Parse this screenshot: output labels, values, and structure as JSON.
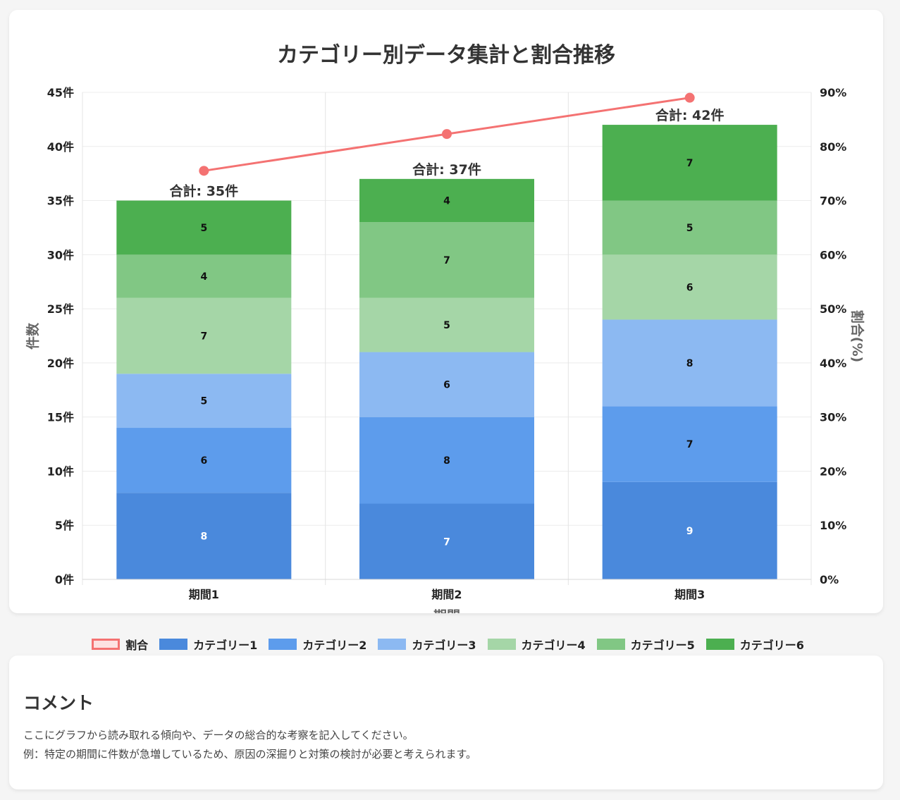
{
  "colors": {
    "ratio_line": "#f47272",
    "ratio_fill": "#fde2e2",
    "categories": [
      "#4a89dc",
      "#5d9cec",
      "#8cb9f2",
      "#a5d6a7",
      "#81c784",
      "#4caf50"
    ],
    "segment_label_colors": [
      "#ffffff",
      "#111111",
      "#111111",
      "#111111",
      "#111111",
      "#111111"
    ]
  },
  "chart_data": {
    "type": "bar",
    "stacked": true,
    "title": "カテゴリー別データ集計と割合推移",
    "xlabel": "期間",
    "ylabel": "件数",
    "y2label": "割合(%)",
    "categories": [
      "期間1",
      "期間2",
      "期間3"
    ],
    "ylim": [
      0,
      45
    ],
    "y2lim": [
      0,
      90
    ],
    "y_ticks": [
      {
        "value": 0,
        "label": "0件"
      },
      {
        "value": 5,
        "label": "5件"
      },
      {
        "value": 10,
        "label": "10件"
      },
      {
        "value": 15,
        "label": "15件"
      },
      {
        "value": 20,
        "label": "20件"
      },
      {
        "value": 25,
        "label": "25件"
      },
      {
        "value": 30,
        "label": "30件"
      },
      {
        "value": 35,
        "label": "35件"
      },
      {
        "value": 40,
        "label": "40件"
      },
      {
        "value": 45,
        "label": "45件"
      }
    ],
    "y2_ticks": [
      {
        "value": 0,
        "label": "0%"
      },
      {
        "value": 10,
        "label": "10%"
      },
      {
        "value": 20,
        "label": "20%"
      },
      {
        "value": 30,
        "label": "30%"
      },
      {
        "value": 40,
        "label": "40%"
      },
      {
        "value": 50,
        "label": "50%"
      },
      {
        "value": 60,
        "label": "60%"
      },
      {
        "value": 70,
        "label": "70%"
      },
      {
        "value": 80,
        "label": "80%"
      },
      {
        "value": 90,
        "label": "90%"
      }
    ],
    "series": [
      {
        "name": "カテゴリー1",
        "values": [
          8,
          7,
          9
        ]
      },
      {
        "name": "カテゴリー2",
        "values": [
          6,
          8,
          7
        ]
      },
      {
        "name": "カテゴリー3",
        "values": [
          5,
          6,
          8
        ]
      },
      {
        "name": "カテゴリー4",
        "values": [
          7,
          5,
          6
        ]
      },
      {
        "name": "カテゴリー5",
        "values": [
          4,
          7,
          5
        ]
      },
      {
        "name": "カテゴリー6",
        "values": [
          5,
          4,
          7
        ]
      }
    ],
    "totals": [
      "合計: 35件",
      "合計: 37件",
      "合計: 42件"
    ],
    "line": {
      "name": "割合",
      "values": [
        75.5,
        82.3,
        89.0
      ]
    },
    "legend_position": "bottom",
    "grid": true
  },
  "legend": {
    "items": [
      "割合",
      "カテゴリー1",
      "カテゴリー2",
      "カテゴリー3",
      "カテゴリー4",
      "カテゴリー5",
      "カテゴリー6"
    ]
  },
  "comment": {
    "title": "コメント",
    "lines": [
      "ここにグラフから読み取れる傾向や、データの総合的な考察を記入してください。",
      "例：特定の期間に件数が急増しているため、原因の深掘りと対策の検討が必要と考えられます。"
    ]
  }
}
